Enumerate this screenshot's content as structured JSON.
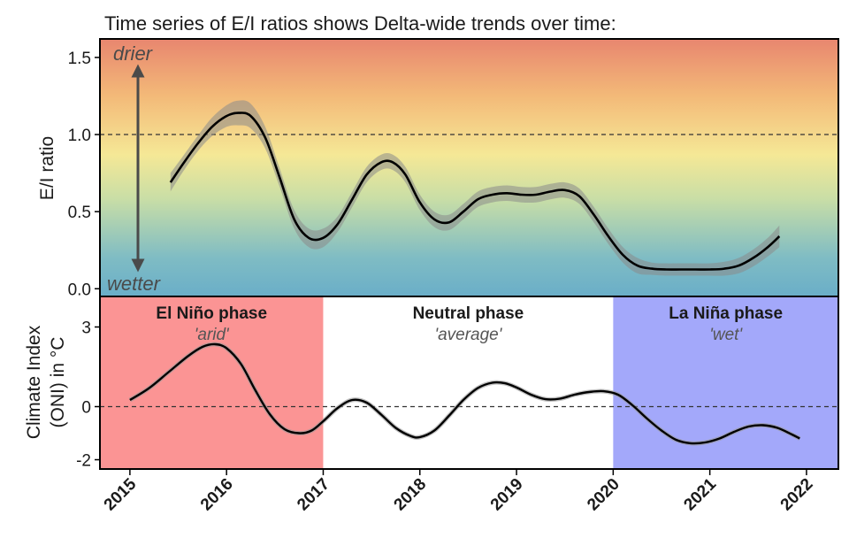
{
  "chart_data": [
    {
      "type": "line",
      "title": "Time series of E/I ratios shows Delta-wide trends over time:",
      "ylabel": "E/I ratio",
      "ylim": [
        -0.05,
        1.62
      ],
      "yticks": [
        0.0,
        0.5,
        1.0,
        1.5
      ],
      "ytick_labels": [
        "0.0",
        "0.5",
        "1.0",
        "1.5"
      ],
      "reference_line": 1.0,
      "annotations": {
        "top": "drier",
        "bottom": "wetter"
      },
      "gradient_colors": [
        "#e8866f",
        "#f3b978",
        "#f5e896",
        "#c9dea6",
        "#7fbcc4",
        "#6aaec8"
      ],
      "series": [
        {
          "name": "E/I ratio",
          "color": "#000000",
          "band_color": "#8a8a8a",
          "x": [
            2015.42,
            2015.55,
            2015.7,
            2015.85,
            2016.0,
            2016.12,
            2016.25,
            2016.4,
            2016.55,
            2016.7,
            2016.85,
            2017.0,
            2017.15,
            2017.3,
            2017.45,
            2017.6,
            2017.72,
            2017.85,
            2018.0,
            2018.15,
            2018.3,
            2018.45,
            2018.6,
            2018.75,
            2018.9,
            2019.05,
            2019.2,
            2019.35,
            2019.5,
            2019.65,
            2019.8,
            2019.95,
            2020.1,
            2020.25,
            2020.4,
            2020.55,
            2020.7,
            2020.85,
            2021.0,
            2021.15,
            2021.3,
            2021.45,
            2021.6,
            2021.72
          ],
          "y": [
            0.69,
            0.81,
            0.94,
            1.05,
            1.12,
            1.14,
            1.12,
            0.98,
            0.72,
            0.45,
            0.33,
            0.33,
            0.42,
            0.58,
            0.74,
            0.82,
            0.82,
            0.74,
            0.56,
            0.45,
            0.43,
            0.5,
            0.58,
            0.61,
            0.62,
            0.61,
            0.61,
            0.63,
            0.64,
            0.6,
            0.48,
            0.34,
            0.22,
            0.15,
            0.13,
            0.125,
            0.125,
            0.125,
            0.125,
            0.13,
            0.15,
            0.2,
            0.27,
            0.34
          ],
          "band": [
            0.06,
            0.05,
            0.05,
            0.06,
            0.07,
            0.08,
            0.08,
            0.07,
            0.06,
            0.06,
            0.06,
            0.06,
            0.05,
            0.05,
            0.05,
            0.05,
            0.05,
            0.05,
            0.05,
            0.05,
            0.05,
            0.05,
            0.05,
            0.05,
            0.05,
            0.05,
            0.05,
            0.05,
            0.05,
            0.05,
            0.05,
            0.05,
            0.05,
            0.05,
            0.04,
            0.04,
            0.04,
            0.04,
            0.04,
            0.045,
            0.05,
            0.055,
            0.06,
            0.07
          ]
        }
      ]
    },
    {
      "type": "line",
      "ylabel_lines": [
        "Climate Index",
        "(ONI) in °C"
      ],
      "ylim": [
        -2.35,
        4.15
      ],
      "yticks": [
        -2,
        0,
        3
      ],
      "ytick_labels": [
        "-2",
        "0",
        "3"
      ],
      "reference_line": 0,
      "xlabel": "",
      "xlim": [
        2014.69,
        2022.33
      ],
      "xticks": [
        2015,
        2016,
        2017,
        2018,
        2019,
        2020,
        2021,
        2022
      ],
      "xtick_labels": [
        "2015",
        "2016",
        "2017",
        "2018",
        "2019",
        "2020",
        "2021",
        "2022"
      ],
      "phases": [
        {
          "name": "El Niño phase",
          "note": "'arid'",
          "from": 2014.69,
          "to": 2017.0,
          "color": "#fb9494"
        },
        {
          "name": "Neutral phase",
          "note": "'average'",
          "from": 2017.0,
          "to": 2020.0,
          "color": "#ffffff"
        },
        {
          "name": "La Niña phase",
          "note": "'wet'",
          "from": 2020.0,
          "to": 2022.33,
          "color": "#a3a8fa"
        }
      ],
      "series": [
        {
          "name": "ONI",
          "color": "#000000",
          "x": [
            2015.0,
            2015.2,
            2015.4,
            2015.6,
            2015.75,
            2015.88,
            2016.0,
            2016.15,
            2016.3,
            2016.45,
            2016.6,
            2016.75,
            2016.88,
            2017.0,
            2017.15,
            2017.3,
            2017.45,
            2017.6,
            2017.75,
            2017.9,
            2018.0,
            2018.15,
            2018.3,
            2018.45,
            2018.6,
            2018.75,
            2018.88,
            2019.0,
            2019.15,
            2019.3,
            2019.45,
            2019.6,
            2019.75,
            2019.9,
            2020.05,
            2020.2,
            2020.35,
            2020.5,
            2020.65,
            2020.8,
            2020.95,
            2021.1,
            2021.25,
            2021.4,
            2021.55,
            2021.7,
            2021.85,
            2021.93
          ],
          "y": [
            0.25,
            0.7,
            1.3,
            1.9,
            2.25,
            2.35,
            2.2,
            1.6,
            0.6,
            -0.3,
            -0.85,
            -1.0,
            -0.9,
            -0.55,
            -0.05,
            0.25,
            0.15,
            -0.3,
            -0.8,
            -1.1,
            -1.15,
            -0.9,
            -0.35,
            0.25,
            0.7,
            0.9,
            0.88,
            0.72,
            0.45,
            0.28,
            0.3,
            0.45,
            0.55,
            0.58,
            0.45,
            0.05,
            -0.45,
            -0.9,
            -1.25,
            -1.38,
            -1.35,
            -1.2,
            -0.95,
            -0.75,
            -0.7,
            -0.8,
            -1.05,
            -1.2
          ]
        }
      ]
    }
  ]
}
